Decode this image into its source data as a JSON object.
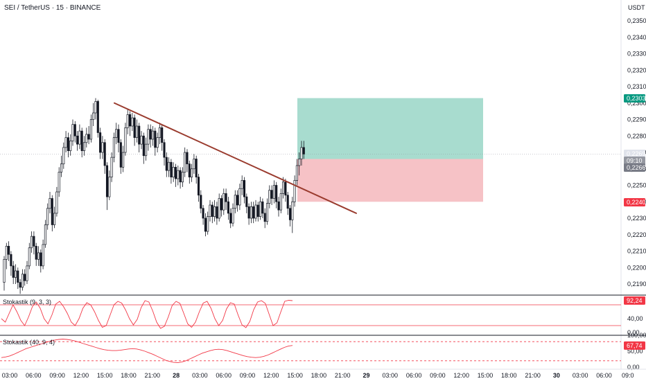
{
  "header": {
    "symbol": "SEI / TetherUS",
    "interval": "15",
    "exchange": "BINANCE",
    "currency": "USDT"
  },
  "chart_data": {
    "type": "candlestick",
    "y_axis": {
      "unit": "USDT",
      "ticks": [
        "0,2350",
        "0,2340",
        "0,2330",
        "0,2320",
        "0,2310",
        "0,2300",
        "0,2290",
        "0,2280",
        "0,2270",
        "0,2260",
        "0,2250",
        "0,2240",
        "0,2230",
        "0,2220",
        "0,2210",
        "0,2200",
        "0,2190"
      ],
      "range": [
        0.2185,
        0.2355
      ]
    },
    "x_axis": {
      "ticks": [
        "03:00",
        "06:00",
        "09:00",
        "12:00",
        "15:00",
        "18:00",
        "21:00",
        "28",
        "03:00",
        "06:00",
        "09:00",
        "12:00",
        "15:00",
        "18:00",
        "21:00",
        "29",
        "03:00",
        "06:00",
        "09:00",
        "12:00",
        "15:00",
        "18:00",
        "21:00",
        "30",
        "03:00",
        "06:00",
        "09:0"
      ]
    },
    "price_tags": [
      {
        "label": "0,2303",
        "value": 0.2303,
        "color": "#089981"
      },
      {
        "label": "0,2269",
        "value": 0.2269,
        "color": "#e0e3eb",
        "text_color": "#131722"
      },
      {
        "label": "09:10",
        "value": 0.22675,
        "color": "#9598a1",
        "text_color": "#131722"
      },
      {
        "label": "0,2266",
        "value": 0.2266,
        "color": "#787b86"
      },
      {
        "label": "0,2240",
        "value": 0.224,
        "color": "#f23645"
      }
    ],
    "long_position": {
      "entry": 0.2266,
      "target": 0.2303,
      "stop": 0.224,
      "profit_color": "#a8dccf",
      "loss_color": "#f6c2c6"
    },
    "trendline": {
      "from": {
        "x": "16:30",
        "price": 0.23
      },
      "to": {
        "x": "~20:00 next day",
        "price": 0.2233
      },
      "color": "#9a3b2e"
    },
    "candles": [
      [
        0.2191,
        0.2205,
        0.2186,
        0.2207
      ],
      [
        0.2205,
        0.2213,
        0.2199,
        0.2215
      ],
      [
        0.2213,
        0.2208,
        0.2204,
        0.2216
      ],
      [
        0.2208,
        0.2201,
        0.2195,
        0.221
      ],
      [
        0.2201,
        0.2194,
        0.219,
        0.2204
      ],
      [
        0.2194,
        0.2198,
        0.219,
        0.2202
      ],
      [
        0.2198,
        0.2191,
        0.2187,
        0.22
      ],
      [
        0.2191,
        0.2188,
        0.2184,
        0.2193
      ],
      [
        0.2188,
        0.2196,
        0.2186,
        0.2199
      ],
      [
        0.2196,
        0.2192,
        0.2189,
        0.2199
      ],
      [
        0.2192,
        0.2201,
        0.219,
        0.2204
      ],
      [
        0.2201,
        0.2212,
        0.2199,
        0.2215
      ],
      [
        0.2212,
        0.2219,
        0.2209,
        0.2222
      ],
      [
        0.2219,
        0.2213,
        0.2208,
        0.2222
      ],
      [
        0.2213,
        0.2205,
        0.2201,
        0.2215
      ],
      [
        0.2205,
        0.2209,
        0.2201,
        0.2213
      ],
      [
        0.2209,
        0.2201,
        0.2197,
        0.2211
      ],
      [
        0.2201,
        0.2214,
        0.2199,
        0.2217
      ],
      [
        0.2214,
        0.2226,
        0.2212,
        0.2229
      ],
      [
        0.2226,
        0.2236,
        0.2223,
        0.2239
      ],
      [
        0.2236,
        0.2242,
        0.2233,
        0.2246
      ],
      [
        0.2242,
        0.2226,
        0.2222,
        0.2244
      ],
      [
        0.2226,
        0.2233,
        0.2224,
        0.2237
      ],
      [
        0.2233,
        0.2246,
        0.2231,
        0.2249
      ],
      [
        0.2246,
        0.2258,
        0.2243,
        0.2261
      ],
      [
        0.2258,
        0.2263,
        0.2255,
        0.2268
      ],
      [
        0.2263,
        0.2273,
        0.226,
        0.2276
      ],
      [
        0.2273,
        0.2279,
        0.227,
        0.2283
      ],
      [
        0.2279,
        0.2271,
        0.2267,
        0.2282
      ],
      [
        0.2271,
        0.2277,
        0.2268,
        0.2281
      ],
      [
        0.2277,
        0.2287,
        0.2274,
        0.229
      ],
      [
        0.2287,
        0.228,
        0.2276,
        0.2289
      ],
      [
        0.228,
        0.2275,
        0.2271,
        0.2283
      ],
      [
        0.2275,
        0.2283,
        0.2272,
        0.2287
      ],
      [
        0.2283,
        0.2271,
        0.2267,
        0.2285
      ],
      [
        0.2271,
        0.2276,
        0.2268,
        0.228
      ],
      [
        0.2276,
        0.2281,
        0.2273,
        0.2285
      ],
      [
        0.2281,
        0.2278,
        0.2275,
        0.2286
      ],
      [
        0.2278,
        0.229,
        0.2276,
        0.2293
      ],
      [
        0.229,
        0.2294,
        0.2286,
        0.23
      ],
      [
        0.2294,
        0.2301,
        0.229,
        0.2303
      ],
      [
        0.2301,
        0.2282,
        0.2279,
        0.2302
      ],
      [
        0.2282,
        0.227,
        0.2266,
        0.2285
      ],
      [
        0.227,
        0.2276,
        0.2266,
        0.228
      ],
      [
        0.2276,
        0.2262,
        0.2257,
        0.2278
      ],
      [
        0.2262,
        0.2243,
        0.2235,
        0.2264
      ],
      [
        0.2243,
        0.2255,
        0.2241,
        0.2259
      ],
      [
        0.2255,
        0.2267,
        0.2252,
        0.227
      ],
      [
        0.2267,
        0.2279,
        0.2264,
        0.2282
      ],
      [
        0.2279,
        0.2284,
        0.2275,
        0.2288
      ],
      [
        0.2284,
        0.2276,
        0.227,
        0.2287
      ],
      [
        0.2276,
        0.2261,
        0.2257,
        0.2278
      ],
      [
        0.2261,
        0.227,
        0.2258,
        0.2274
      ],
      [
        0.227,
        0.2285,
        0.2268,
        0.2288
      ],
      [
        0.2285,
        0.2293,
        0.2281,
        0.2296
      ],
      [
        0.2293,
        0.2286,
        0.228,
        0.2295
      ],
      [
        0.2286,
        0.2291,
        0.2283,
        0.2294
      ],
      [
        0.2291,
        0.2279,
        0.2274,
        0.2293
      ],
      [
        0.2279,
        0.2286,
        0.2276,
        0.229
      ],
      [
        0.2286,
        0.2275,
        0.227,
        0.2288
      ],
      [
        0.2275,
        0.228,
        0.2272,
        0.2283
      ],
      [
        0.228,
        0.2268,
        0.2263,
        0.2282
      ],
      [
        0.2268,
        0.2275,
        0.2265,
        0.2279
      ],
      [
        0.2275,
        0.2284,
        0.2271,
        0.2287
      ],
      [
        0.2284,
        0.2278,
        0.2273,
        0.2287
      ],
      [
        0.2278,
        0.2283,
        0.2274,
        0.2286
      ],
      [
        0.2283,
        0.2273,
        0.2268,
        0.2285
      ],
      [
        0.2273,
        0.2279,
        0.227,
        0.2282
      ],
      [
        0.2279,
        0.2285,
        0.2275,
        0.2288
      ],
      [
        0.2285,
        0.2276,
        0.2271,
        0.2287
      ],
      [
        0.2276,
        0.2267,
        0.2262,
        0.2278
      ],
      [
        0.2267,
        0.2259,
        0.2255,
        0.227
      ],
      [
        0.2259,
        0.2264,
        0.2255,
        0.2267
      ],
      [
        0.2264,
        0.2255,
        0.2251,
        0.2266
      ],
      [
        0.2255,
        0.2261,
        0.2252,
        0.2264
      ],
      [
        0.2261,
        0.2254,
        0.2249,
        0.2263
      ],
      [
        0.2254,
        0.2259,
        0.225,
        0.2262
      ],
      [
        0.2259,
        0.2252,
        0.2248,
        0.2261
      ],
      [
        0.2252,
        0.2258,
        0.2249,
        0.2261
      ],
      [
        0.2258,
        0.227,
        0.2255,
        0.2273
      ],
      [
        0.227,
        0.2263,
        0.2258,
        0.2272
      ],
      [
        0.2263,
        0.2255,
        0.2251,
        0.2265
      ],
      [
        0.2255,
        0.226,
        0.2252,
        0.2263
      ],
      [
        0.226,
        0.2266,
        0.2257,
        0.2269
      ],
      [
        0.2266,
        0.2255,
        0.2251,
        0.2268
      ],
      [
        0.2255,
        0.2244,
        0.224,
        0.2257
      ],
      [
        0.2244,
        0.2236,
        0.2233,
        0.2247
      ],
      [
        0.2236,
        0.223,
        0.2226,
        0.2238
      ],
      [
        0.223,
        0.2222,
        0.2219,
        0.2233
      ],
      [
        0.2222,
        0.2231,
        0.222,
        0.2234
      ],
      [
        0.2231,
        0.2238,
        0.2228,
        0.2241
      ],
      [
        0.2238,
        0.2231,
        0.2227,
        0.224
      ],
      [
        0.2231,
        0.2237,
        0.2228,
        0.2241
      ],
      [
        0.2237,
        0.223,
        0.2226,
        0.224
      ],
      [
        0.223,
        0.2242,
        0.2228,
        0.2245
      ],
      [
        0.2242,
        0.2235,
        0.2231,
        0.2244
      ],
      [
        0.2235,
        0.2245,
        0.2232,
        0.2248
      ],
      [
        0.2245,
        0.224,
        0.2235,
        0.2248
      ],
      [
        0.224,
        0.2233,
        0.2229,
        0.2243
      ],
      [
        0.2233,
        0.2227,
        0.2224,
        0.2236
      ],
      [
        0.2227,
        0.2236,
        0.2225,
        0.2239
      ],
      [
        0.2236,
        0.2244,
        0.2233,
        0.2247
      ],
      [
        0.2244,
        0.2238,
        0.2234,
        0.2247
      ],
      [
        0.2238,
        0.2248,
        0.2235,
        0.2251
      ],
      [
        0.2248,
        0.2253,
        0.2244,
        0.2256
      ],
      [
        0.2253,
        0.2243,
        0.2239,
        0.2255
      ],
      [
        0.2243,
        0.2237,
        0.2233,
        0.2245
      ],
      [
        0.2237,
        0.223,
        0.2226,
        0.2239
      ],
      [
        0.223,
        0.2237,
        0.2227,
        0.224
      ],
      [
        0.2237,
        0.223,
        0.2227,
        0.224
      ],
      [
        0.223,
        0.2238,
        0.2228,
        0.2241
      ],
      [
        0.2238,
        0.2231,
        0.2228,
        0.224
      ],
      [
        0.2231,
        0.224,
        0.2229,
        0.2243
      ],
      [
        0.224,
        0.2233,
        0.223,
        0.2242
      ],
      [
        0.2233,
        0.2228,
        0.2224,
        0.2236
      ],
      [
        0.2228,
        0.2239,
        0.2226,
        0.2242
      ],
      [
        0.2239,
        0.2247,
        0.2236,
        0.225
      ],
      [
        0.2247,
        0.2242,
        0.2238,
        0.225
      ],
      [
        0.2242,
        0.225,
        0.2239,
        0.2253
      ],
      [
        0.225,
        0.224,
        0.2236,
        0.2252
      ],
      [
        0.224,
        0.2235,
        0.2231,
        0.2243
      ],
      [
        0.2235,
        0.2245,
        0.2233,
        0.2248
      ],
      [
        0.2245,
        0.2252,
        0.2242,
        0.2255
      ],
      [
        0.2252,
        0.2244,
        0.224,
        0.2254
      ],
      [
        0.2244,
        0.2236,
        0.2232,
        0.2246
      ],
      [
        0.2236,
        0.2229,
        0.2225,
        0.2238
      ],
      [
        0.2229,
        0.224,
        0.2221,
        0.2243
      ],
      [
        0.224,
        0.2253,
        0.2237,
        0.2256
      ],
      [
        0.2253,
        0.2262,
        0.225,
        0.2266
      ],
      [
        0.2262,
        0.2266,
        0.2256,
        0.227
      ],
      [
        0.2266,
        0.2273,
        0.2262,
        0.2277
      ],
      [
        0.2273,
        0.2269,
        0.2266,
        0.2277
      ]
    ],
    "indicators": [
      {
        "label": "Stokastik (9, 3, 3)",
        "value_label": "92,24",
        "value": 92.24,
        "value_color": "#f23645",
        "axis_ticks": [
          {
            "label": "40,00",
            "value": 40
          },
          {
            "label": "0,00",
            "value": 0
          }
        ],
        "bands": [
          80,
          20
        ],
        "range": [
          0,
          100
        ],
        "series": [
          40,
          30,
          55,
          80,
          60,
          35,
          20,
          45,
          75,
          88,
          70,
          40,
          25,
          50,
          82,
          90,
          75,
          55,
          30,
          20,
          40,
          70,
          86,
          80,
          60,
          35,
          15,
          20,
          50,
          80,
          90,
          85,
          65,
          40,
          22,
          38,
          72,
          92,
          88,
          62,
          30,
          12,
          18,
          45,
          78,
          90,
          84,
          55,
          25,
          15,
          30,
          60,
          85,
          90,
          70,
          40,
          20,
          35,
          68,
          86,
          82,
          50,
          22,
          14,
          32,
          66,
          88,
          92,
          84,
          52,
          20,
          28,
          60,
          90,
          93,
          92
        ]
      },
      {
        "label": "Stokastik (40, 9, 4)",
        "value_label": "67,74",
        "value": 67.74,
        "value_color": "#f23645",
        "axis_ticks": [
          {
            "label": "100,00",
            "value": 100
          },
          {
            "label": "50,00",
            "value": 50
          },
          {
            "label": "0,00",
            "value": 0
          }
        ],
        "bands": [
          80,
          20
        ],
        "range": [
          0,
          100
        ],
        "series": [
          30,
          32,
          35,
          40,
          46,
          52,
          58,
          62,
          66,
          70,
          74,
          78,
          82,
          85,
          87,
          88,
          87,
          85,
          82,
          78,
          74,
          70,
          66,
          62,
          58,
          55,
          53,
          52,
          52,
          53,
          55,
          57,
          58,
          57,
          54,
          50,
          45,
          40,
          34,
          28,
          22,
          18,
          15,
          14,
          16,
          20,
          26,
          32,
          38,
          44,
          48,
          52,
          55,
          56,
          55,
          52,
          48,
          44,
          40,
          36,
          33,
          31,
          30,
          31,
          34,
          38,
          44,
          50,
          56,
          62,
          66,
          68
        ]
      }
    ]
  }
}
